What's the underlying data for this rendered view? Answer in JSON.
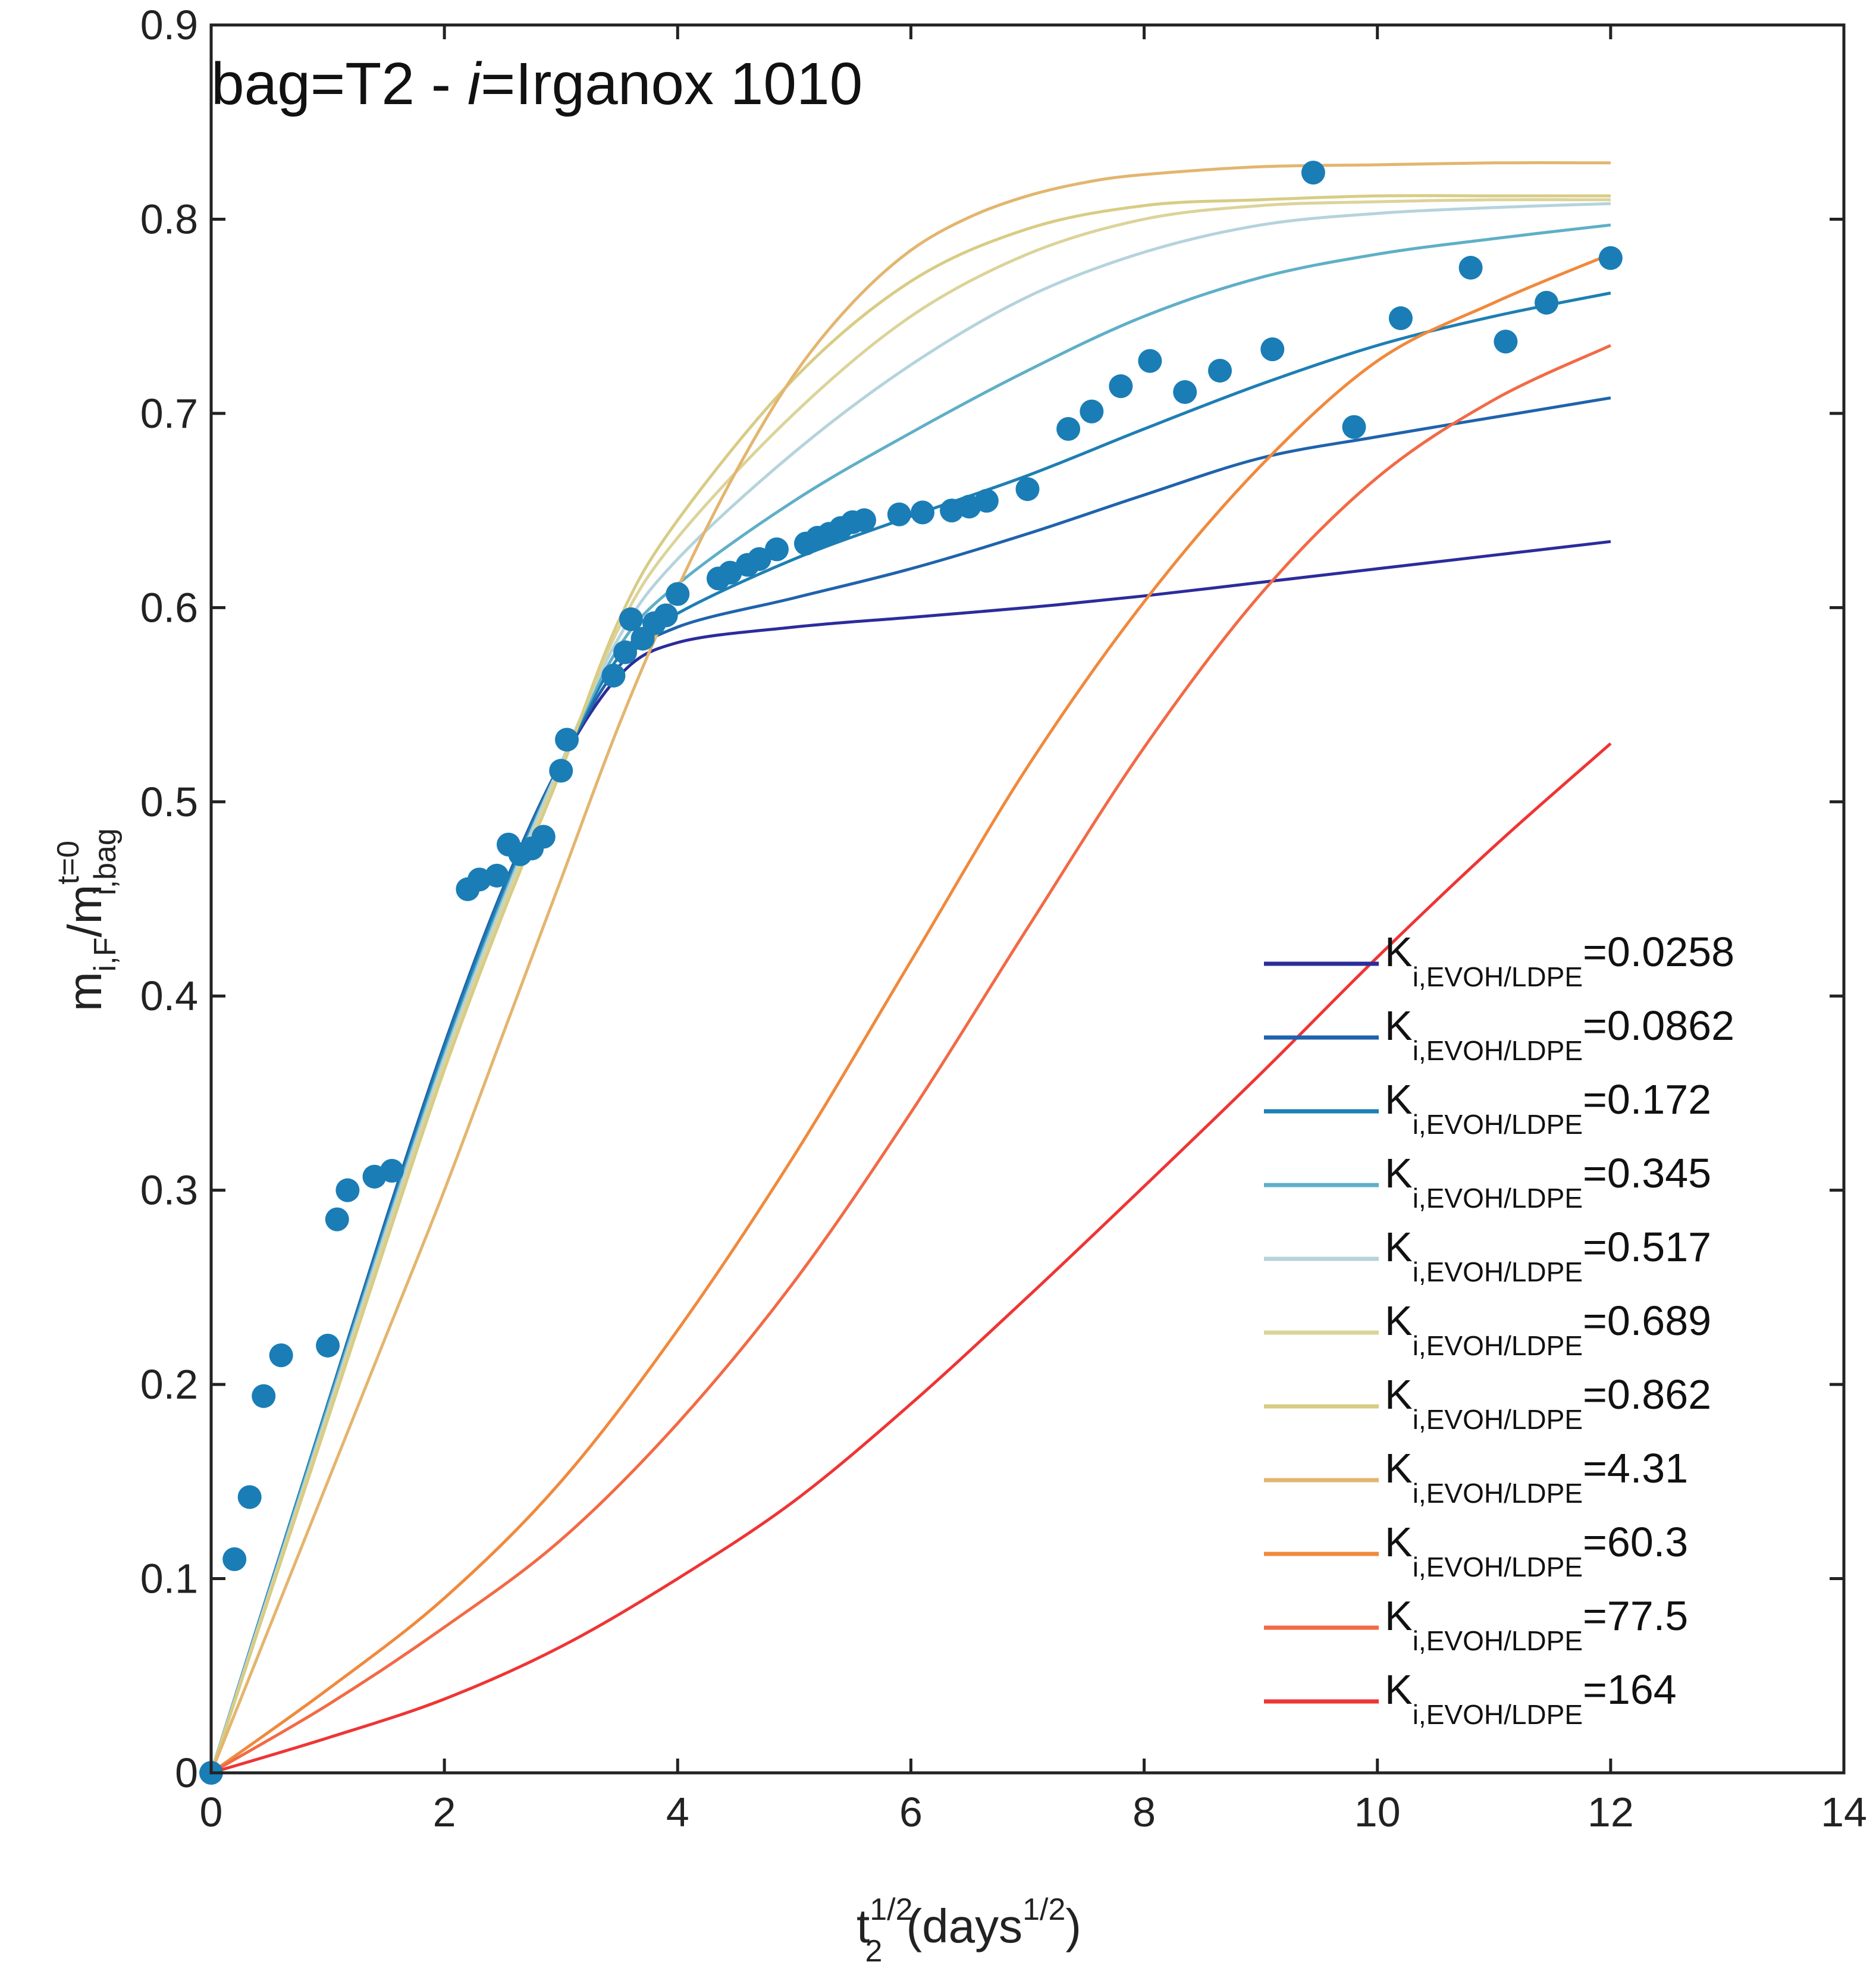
{
  "chart_data": {
    "type": "line",
    "title_prefix": "bag=T2 - ",
    "title_var": "i",
    "title_suffix": "=Irganox 1010",
    "xlabel": {
      "base": "t",
      "sub": "2",
      "sup": "1/2",
      "units_base": "(days",
      "units_sup": "1/2",
      "units_close": ")"
    },
    "ylabel": {
      "base1": "m",
      "sub1": "i,F",
      "slash": "/m",
      "sup2": "t=0",
      "sub2": "i,bag"
    },
    "xlim": [
      0,
      14
    ],
    "ylim": [
      0,
      0.9
    ],
    "x_ticks": [
      "0",
      "2",
      "4",
      "6",
      "8",
      "10",
      "12",
      "14"
    ],
    "y_ticks": [
      "0",
      "0.1",
      "0.2",
      "0.3",
      "0.4",
      "0.5",
      "0.6",
      "0.7",
      "0.8",
      "0.9"
    ],
    "legend_position": "bottom-right",
    "legend_label_base": "K",
    "legend_label_sub": "i,EVOH/LDPE",
    "series": [
      {
        "name": "=0.0258",
        "color": "#2b2c9a",
        "x": [
          0,
          0.5,
          1,
          1.5,
          2,
          2.5,
          3,
          3.5,
          4,
          5,
          6,
          7,
          8,
          9,
          10,
          11,
          12
        ],
        "y": [
          0,
          0.095,
          0.19,
          0.285,
          0.375,
          0.455,
          0.52,
          0.565,
          0.582,
          0.59,
          0.595,
          0.6,
          0.606,
          0.613,
          0.62,
          0.627,
          0.634
        ]
      },
      {
        "name": "=0.0862",
        "color": "#1f63ad",
        "x": [
          0,
          0.5,
          1,
          1.5,
          2,
          2.5,
          3,
          3.5,
          4,
          5,
          6,
          7,
          8,
          9,
          10,
          11,
          12
        ],
        "y": [
          0,
          0.095,
          0.19,
          0.285,
          0.375,
          0.455,
          0.52,
          0.57,
          0.59,
          0.605,
          0.62,
          0.638,
          0.658,
          0.677,
          0.688,
          0.698,
          0.708
        ]
      },
      {
        "name": "=0.172",
        "color": "#1d7fb3",
        "x": [
          0,
          0.5,
          1,
          1.5,
          2,
          2.5,
          3,
          3.5,
          4,
          5,
          6,
          7,
          8,
          9,
          10,
          11,
          12
        ],
        "y": [
          0,
          0.095,
          0.19,
          0.283,
          0.373,
          0.453,
          0.52,
          0.575,
          0.597,
          0.625,
          0.647,
          0.668,
          0.692,
          0.715,
          0.735,
          0.75,
          0.762
        ]
      },
      {
        "name": "=0.345",
        "color": "#5fafc7",
        "x": [
          0,
          0.5,
          1,
          1.5,
          2,
          2.5,
          3,
          3.5,
          4,
          5,
          6,
          7,
          8,
          9,
          10,
          11,
          12
        ],
        "y": [
          0,
          0.094,
          0.188,
          0.281,
          0.37,
          0.45,
          0.52,
          0.58,
          0.612,
          0.655,
          0.69,
          0.722,
          0.75,
          0.77,
          0.782,
          0.79,
          0.797
        ]
      },
      {
        "name": "=0.517",
        "color": "#b5d3dc",
        "x": [
          0,
          0.5,
          1,
          1.5,
          2,
          2.5,
          3,
          3.5,
          4,
          5,
          6,
          7,
          8,
          9,
          10,
          11,
          12
        ],
        "y": [
          0,
          0.093,
          0.186,
          0.279,
          0.368,
          0.448,
          0.52,
          0.585,
          0.625,
          0.68,
          0.725,
          0.76,
          0.783,
          0.797,
          0.803,
          0.806,
          0.808
        ]
      },
      {
        "name": "=0.689",
        "color": "#dcd39a",
        "x": [
          0,
          0.5,
          1,
          1.5,
          2,
          2.5,
          3,
          3.5,
          4,
          5,
          6,
          7,
          8,
          9,
          10,
          11,
          12
        ],
        "y": [
          0,
          0.092,
          0.184,
          0.276,
          0.365,
          0.445,
          0.518,
          0.59,
          0.636,
          0.7,
          0.75,
          0.782,
          0.8,
          0.807,
          0.809,
          0.81,
          0.81
        ]
      },
      {
        "name": "=0.862",
        "color": "#d8cc85",
        "x": [
          0,
          0.5,
          1,
          1.5,
          2,
          2.5,
          3,
          3.5,
          4,
          5,
          6,
          7,
          8,
          9,
          10,
          11,
          12
        ],
        "y": [
          0,
          0.091,
          0.182,
          0.273,
          0.362,
          0.442,
          0.516,
          0.594,
          0.645,
          0.718,
          0.768,
          0.795,
          0.807,
          0.81,
          0.812,
          0.812,
          0.812
        ]
      },
      {
        "name": "=4.31",
        "color": "#e3b56e",
        "x": [
          0,
          0.5,
          1,
          1.5,
          2,
          2.5,
          3,
          3.5,
          4,
          4.5,
          5,
          5.5,
          6,
          6.5,
          7,
          7.5,
          8,
          9,
          10,
          11,
          12
        ],
        "y": [
          0,
          0.075,
          0.15,
          0.225,
          0.3,
          0.38,
          0.46,
          0.54,
          0.61,
          0.67,
          0.72,
          0.757,
          0.784,
          0.801,
          0.812,
          0.819,
          0.823,
          0.827,
          0.828,
          0.829,
          0.829
        ]
      },
      {
        "name": "=60.3",
        "color": "#f0893c",
        "x": [
          0,
          1,
          2,
          3,
          4,
          5,
          6,
          7,
          8,
          9,
          10,
          11,
          12
        ],
        "y": [
          0,
          0.043,
          0.09,
          0.15,
          0.228,
          0.318,
          0.418,
          0.518,
          0.603,
          0.673,
          0.727,
          0.757,
          0.782
        ]
      },
      {
        "name": "=77.5",
        "color": "#f26a45",
        "x": [
          0,
          1,
          2,
          3,
          4,
          5,
          6,
          7,
          8,
          9,
          10,
          11,
          12
        ],
        "y": [
          0,
          0.035,
          0.075,
          0.12,
          0.18,
          0.253,
          0.34,
          0.435,
          0.528,
          0.607,
          0.667,
          0.707,
          0.735
        ]
      },
      {
        "name": "=164",
        "color": "#ee3535",
        "x": [
          0,
          1,
          2,
          3,
          4,
          5,
          6,
          7,
          8,
          9,
          10,
          11,
          12
        ],
        "y": [
          0,
          0.018,
          0.038,
          0.065,
          0.1,
          0.14,
          0.19,
          0.245,
          0.302,
          0.36,
          0.42,
          0.477,
          0.53
        ]
      }
    ],
    "scatter": {
      "color": "#1a7db6",
      "points": [
        [
          0,
          0
        ],
        [
          0.2,
          0.11
        ],
        [
          0.33,
          0.142
        ],
        [
          0.45,
          0.194
        ],
        [
          0.6,
          0.215
        ],
        [
          1.0,
          0.22
        ],
        [
          1.08,
          0.285
        ],
        [
          1.17,
          0.3
        ],
        [
          1.4,
          0.307
        ],
        [
          1.55,
          0.31
        ],
        [
          2.2,
          0.455
        ],
        [
          2.3,
          0.46
        ],
        [
          2.45,
          0.462
        ],
        [
          2.55,
          0.478
        ],
        [
          2.65,
          0.473
        ],
        [
          2.75,
          0.476
        ],
        [
          2.85,
          0.482
        ],
        [
          3.0,
          0.516
        ],
        [
          3.05,
          0.532
        ],
        [
          3.45,
          0.565
        ],
        [
          3.55,
          0.577
        ],
        [
          3.6,
          0.594
        ],
        [
          3.7,
          0.584
        ],
        [
          3.8,
          0.592
        ],
        [
          3.9,
          0.596
        ],
        [
          4.0,
          0.607
        ],
        [
          4.35,
          0.615
        ],
        [
          4.45,
          0.618
        ],
        [
          4.6,
          0.622
        ],
        [
          4.7,
          0.625
        ],
        [
          4.85,
          0.63
        ],
        [
          5.1,
          0.633
        ],
        [
          5.2,
          0.636
        ],
        [
          5.3,
          0.638
        ],
        [
          5.4,
          0.641
        ],
        [
          5.5,
          0.644
        ],
        [
          5.6,
          0.645
        ],
        [
          5.9,
          0.648
        ],
        [
          6.1,
          0.649
        ],
        [
          6.35,
          0.65
        ],
        [
          6.5,
          0.652
        ],
        [
          6.65,
          0.655
        ],
        [
          7.0,
          0.661
        ],
        [
          7.35,
          0.692
        ],
        [
          7.55,
          0.701
        ],
        [
          7.8,
          0.714
        ],
        [
          8.05,
          0.727
        ],
        [
          8.35,
          0.711
        ],
        [
          8.65,
          0.722
        ],
        [
          9.1,
          0.733
        ],
        [
          9.45,
          0.824
        ],
        [
          9.8,
          0.693
        ],
        [
          10.2,
          0.749
        ],
        [
          10.8,
          0.775
        ],
        [
          11.1,
          0.737
        ],
        [
          11.45,
          0.757
        ],
        [
          12.0,
          0.78
        ]
      ]
    }
  }
}
